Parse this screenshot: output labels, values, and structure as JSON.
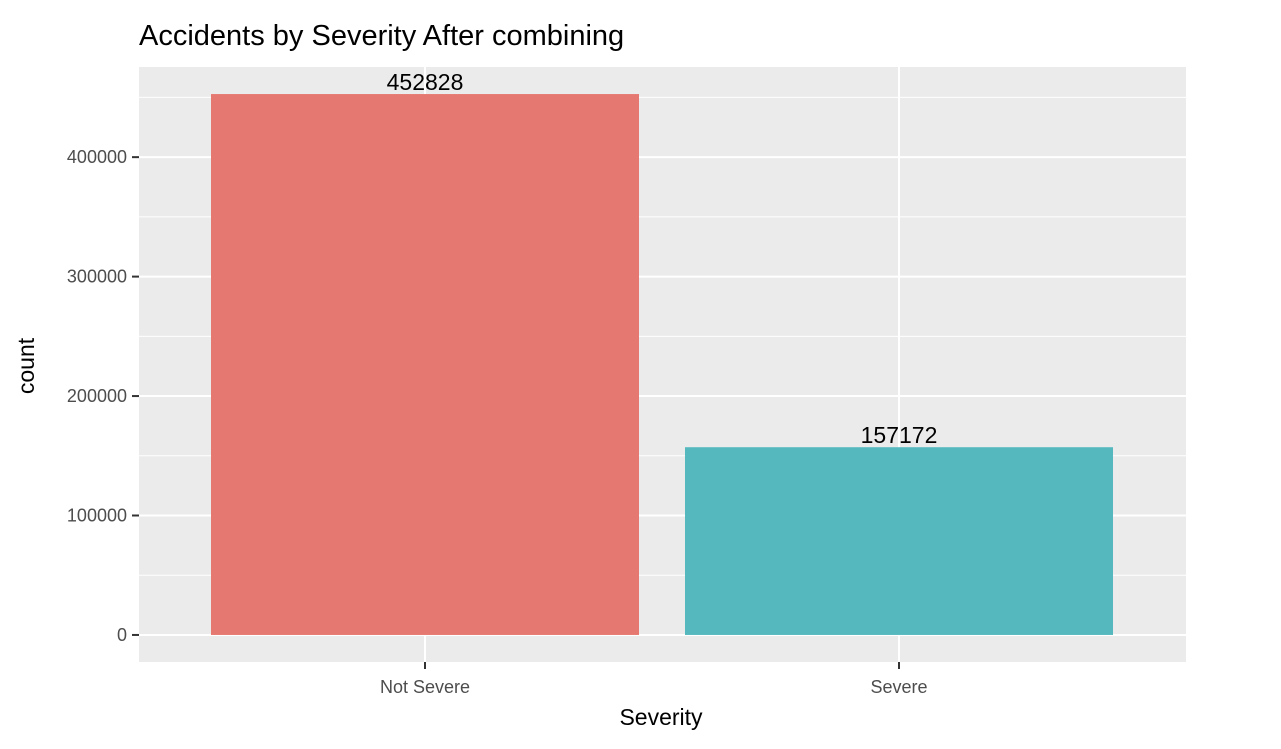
{
  "chart_data": {
    "type": "bar",
    "title": "Accidents by Severity After combining",
    "xlabel": "Severity",
    "ylabel": "count",
    "categories": [
      "Not Severe",
      "Severe"
    ],
    "values": [
      452828,
      157172
    ],
    "data_labels": [
      "452828",
      "157172"
    ],
    "bar_colors": [
      "#E57870",
      "#55B8BE"
    ],
    "yticks": [
      0,
      100000,
      200000,
      300000,
      400000
    ],
    "ytick_labels": [
      "0",
      "100000",
      "200000",
      "300000",
      "400000"
    ],
    "ylim": [
      -22641,
      475469
    ],
    "grid": true,
    "legend": "none",
    "panel_color": "#EBEBEB",
    "grid_color": "#FFFFFF"
  }
}
